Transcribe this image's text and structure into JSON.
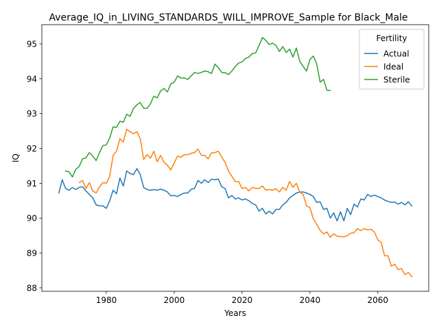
{
  "chart_data": {
    "type": "line",
    "title": "Average_IQ_in_LIVING_STANDARDS_WILL_IMPROVE_Sample for Black_Male",
    "xlabel": "Years",
    "ylabel": "IQ",
    "xlim": [
      1961,
      2075
    ],
    "ylim": [
      87.9,
      95.55
    ],
    "xticks": [
      1980,
      2000,
      2020,
      2040,
      2060
    ],
    "yticks": [
      88,
      89,
      90,
      91,
      92,
      93,
      94,
      95
    ],
    "grid": false,
    "legend": {
      "title": "Fertility",
      "placement": "top-right"
    },
    "series": [
      {
        "name": "Actual",
        "color": "#1f77b4",
        "points": [
          [
            1966,
            90.72
          ],
          [
            1967,
            91.1
          ],
          [
            1968,
            90.85
          ],
          [
            1969,
            90.8
          ],
          [
            1970,
            90.88
          ],
          [
            1971,
            90.82
          ],
          [
            1972,
            90.88
          ],
          [
            1973,
            90.9
          ],
          [
            1974,
            90.78
          ],
          [
            1975,
            90.68
          ],
          [
            1976,
            90.58
          ],
          [
            1977,
            90.38
          ],
          [
            1978,
            90.35
          ],
          [
            1979,
            90.35
          ],
          [
            1980,
            90.28
          ],
          [
            1981,
            90.5
          ],
          [
            1982,
            90.8
          ],
          [
            1983,
            90.7
          ],
          [
            1984,
            91.15
          ],
          [
            1985,
            90.92
          ],
          [
            1986,
            91.35
          ],
          [
            1987,
            91.28
          ],
          [
            1988,
            91.25
          ],
          [
            1989,
            91.42
          ],
          [
            1990,
            91.25
          ],
          [
            1991,
            90.88
          ],
          [
            1992,
            90.82
          ],
          [
            1993,
            90.8
          ],
          [
            1994,
            90.82
          ],
          [
            1995,
            90.8
          ],
          [
            1996,
            90.83
          ],
          [
            1997,
            90.8
          ],
          [
            1998,
            90.75
          ],
          [
            1999,
            90.64
          ],
          [
            2000,
            90.65
          ],
          [
            2001,
            90.62
          ],
          [
            2002,
            90.68
          ],
          [
            2003,
            90.72
          ],
          [
            2004,
            90.72
          ],
          [
            2005,
            90.83
          ],
          [
            2006,
            90.85
          ],
          [
            2007,
            91.08
          ],
          [
            2008,
            91.0
          ],
          [
            2009,
            91.1
          ],
          [
            2010,
            91.02
          ],
          [
            2011,
            91.12
          ],
          [
            2012,
            91.1
          ],
          [
            2013,
            91.12
          ],
          [
            2014,
            90.9
          ],
          [
            2015,
            90.85
          ],
          [
            2016,
            90.58
          ],
          [
            2017,
            90.65
          ],
          [
            2018,
            90.55
          ],
          [
            2019,
            90.58
          ],
          [
            2020,
            90.52
          ],
          [
            2021,
            90.55
          ],
          [
            2022,
            90.5
          ],
          [
            2023,
            90.42
          ],
          [
            2024,
            90.38
          ],
          [
            2025,
            90.2
          ],
          [
            2026,
            90.28
          ],
          [
            2027,
            90.12
          ],
          [
            2028,
            90.2
          ],
          [
            2029,
            90.12
          ],
          [
            2030,
            90.25
          ],
          [
            2031,
            90.25
          ],
          [
            2032,
            90.38
          ],
          [
            2033,
            90.45
          ],
          [
            2034,
            90.58
          ],
          [
            2035,
            90.65
          ],
          [
            2036,
            90.72
          ],
          [
            2037,
            90.75
          ],
          [
            2038,
            90.75
          ],
          [
            2039,
            90.72
          ],
          [
            2040,
            90.68
          ],
          [
            2041,
            90.62
          ],
          [
            2042,
            90.45
          ],
          [
            2043,
            90.47
          ],
          [
            2044,
            90.25
          ],
          [
            2045,
            90.28
          ],
          [
            2046,
            90.0
          ],
          [
            2047,
            90.15
          ],
          [
            2048,
            89.92
          ],
          [
            2049,
            90.18
          ],
          [
            2050,
            89.92
          ],
          [
            2051,
            90.28
          ],
          [
            2052,
            90.1
          ],
          [
            2053,
            90.4
          ],
          [
            2054,
            90.32
          ],
          [
            2055,
            90.55
          ],
          [
            2056,
            90.52
          ],
          [
            2057,
            90.68
          ],
          [
            2058,
            90.62
          ],
          [
            2059,
            90.66
          ],
          [
            2060,
            90.62
          ],
          [
            2061,
            90.58
          ],
          [
            2062,
            90.52
          ],
          [
            2063,
            90.48
          ],
          [
            2064,
            90.45
          ],
          [
            2065,
            90.46
          ],
          [
            2066,
            90.4
          ],
          [
            2067,
            90.45
          ],
          [
            2068,
            90.38
          ],
          [
            2069,
            90.47
          ],
          [
            2070,
            90.35
          ]
        ]
      },
      {
        "name": "Ideal",
        "color": "#ff7f0e",
        "points": [
          [
            1972,
            91.02
          ],
          [
            1973,
            91.08
          ],
          [
            1974,
            90.85
          ],
          [
            1975,
            91.02
          ],
          [
            1976,
            90.78
          ],
          [
            1977,
            90.72
          ],
          [
            1978,
            90.9
          ],
          [
            1979,
            91.02
          ],
          [
            1980,
            91.0
          ],
          [
            1981,
            91.2
          ],
          [
            1982,
            91.8
          ],
          [
            1983,
            91.92
          ],
          [
            1984,
            92.28
          ],
          [
            1985,
            92.18
          ],
          [
            1986,
            92.55
          ],
          [
            1987,
            92.48
          ],
          [
            1988,
            92.42
          ],
          [
            1989,
            92.48
          ],
          [
            1990,
            92.28
          ],
          [
            1991,
            91.68
          ],
          [
            1992,
            91.82
          ],
          [
            1993,
            91.72
          ],
          [
            1994,
            91.92
          ],
          [
            1995,
            91.62
          ],
          [
            1996,
            91.8
          ],
          [
            1997,
            91.6
          ],
          [
            1998,
            91.52
          ],
          [
            1999,
            91.38
          ],
          [
            2000,
            91.58
          ],
          [
            2001,
            91.78
          ],
          [
            2002,
            91.75
          ],
          [
            2003,
            91.82
          ],
          [
            2004,
            91.82
          ],
          [
            2005,
            91.86
          ],
          [
            2006,
            91.88
          ],
          [
            2007,
            91.98
          ],
          [
            2008,
            91.8
          ],
          [
            2009,
            91.8
          ],
          [
            2010,
            91.7
          ],
          [
            2011,
            91.87
          ],
          [
            2012,
            91.88
          ],
          [
            2013,
            91.92
          ],
          [
            2014,
            91.75
          ],
          [
            2015,
            91.6
          ],
          [
            2016,
            91.35
          ],
          [
            2017,
            91.2
          ],
          [
            2018,
            91.05
          ],
          [
            2019,
            91.05
          ],
          [
            2020,
            90.85
          ],
          [
            2021,
            90.88
          ],
          [
            2022,
            90.78
          ],
          [
            2023,
            90.88
          ],
          [
            2024,
            90.85
          ],
          [
            2025,
            90.85
          ],
          [
            2026,
            90.92
          ],
          [
            2027,
            90.8
          ],
          [
            2028,
            90.82
          ],
          [
            2029,
            90.8
          ],
          [
            2030,
            90.84
          ],
          [
            2031,
            90.75
          ],
          [
            2032,
            90.88
          ],
          [
            2033,
            90.8
          ],
          [
            2034,
            91.05
          ],
          [
            2035,
            90.88
          ],
          [
            2036,
            91.0
          ],
          [
            2037,
            90.75
          ],
          [
            2038,
            90.68
          ],
          [
            2039,
            90.35
          ],
          [
            2040,
            90.3
          ],
          [
            2041,
            89.98
          ],
          [
            2042,
            89.82
          ],
          [
            2043,
            89.65
          ],
          [
            2044,
            89.55
          ],
          [
            2045,
            89.6
          ],
          [
            2046,
            89.45
          ],
          [
            2047,
            89.55
          ],
          [
            2048,
            89.48
          ],
          [
            2049,
            89.47
          ],
          [
            2050,
            89.46
          ],
          [
            2051,
            89.5
          ],
          [
            2052,
            89.57
          ],
          [
            2053,
            89.58
          ],
          [
            2054,
            89.7
          ],
          [
            2055,
            89.64
          ],
          [
            2056,
            89.7
          ],
          [
            2057,
            89.66
          ],
          [
            2058,
            89.68
          ],
          [
            2059,
            89.6
          ],
          [
            2060,
            89.38
          ],
          [
            2061,
            89.3
          ],
          [
            2062,
            88.92
          ],
          [
            2063,
            88.92
          ],
          [
            2064,
            88.62
          ],
          [
            2065,
            88.68
          ],
          [
            2066,
            88.52
          ],
          [
            2067,
            88.55
          ],
          [
            2068,
            88.38
          ],
          [
            2069,
            88.44
          ],
          [
            2070,
            88.32
          ]
        ]
      },
      {
        "name": "Sterile",
        "color": "#2ca02c",
        "points": [
          [
            1968,
            91.35
          ],
          [
            1969,
            91.33
          ],
          [
            1970,
            91.18
          ],
          [
            1971,
            91.4
          ],
          [
            1972,
            91.48
          ],
          [
            1973,
            91.7
          ],
          [
            1974,
            91.73
          ],
          [
            1975,
            91.88
          ],
          [
            1976,
            91.78
          ],
          [
            1977,
            91.65
          ],
          [
            1978,
            91.88
          ],
          [
            1979,
            92.08
          ],
          [
            1980,
            92.1
          ],
          [
            1981,
            92.3
          ],
          [
            1982,
            92.62
          ],
          [
            1983,
            92.6
          ],
          [
            1984,
            92.78
          ],
          [
            1985,
            92.75
          ],
          [
            1986,
            92.98
          ],
          [
            1987,
            92.92
          ],
          [
            1988,
            93.15
          ],
          [
            1989,
            93.25
          ],
          [
            1990,
            93.32
          ],
          [
            1991,
            93.15
          ],
          [
            1992,
            93.15
          ],
          [
            1993,
            93.28
          ],
          [
            1994,
            93.5
          ],
          [
            1995,
            93.45
          ],
          [
            1996,
            93.65
          ],
          [
            1997,
            93.72
          ],
          [
            1998,
            93.62
          ],
          [
            1999,
            93.85
          ],
          [
            2000,
            93.9
          ],
          [
            2001,
            94.08
          ],
          [
            2002,
            94.02
          ],
          [
            2003,
            94.02
          ],
          [
            2004,
            93.98
          ],
          [
            2005,
            94.08
          ],
          [
            2006,
            94.18
          ],
          [
            2007,
            94.15
          ],
          [
            2008,
            94.18
          ],
          [
            2009,
            94.22
          ],
          [
            2010,
            94.2
          ],
          [
            2011,
            94.15
          ],
          [
            2012,
            94.42
          ],
          [
            2013,
            94.32
          ],
          [
            2014,
            94.18
          ],
          [
            2015,
            94.17
          ],
          [
            2016,
            94.12
          ],
          [
            2017,
            94.22
          ],
          [
            2018,
            94.35
          ],
          [
            2019,
            94.45
          ],
          [
            2020,
            94.48
          ],
          [
            2021,
            94.58
          ],
          [
            2022,
            94.62
          ],
          [
            2023,
            94.72
          ],
          [
            2024,
            94.74
          ],
          [
            2025,
            94.95
          ],
          [
            2026,
            95.18
          ],
          [
            2027,
            95.1
          ],
          [
            2028,
            94.98
          ],
          [
            2029,
            95.02
          ],
          [
            2030,
            94.95
          ],
          [
            2031,
            94.78
          ],
          [
            2032,
            94.92
          ],
          [
            2033,
            94.75
          ],
          [
            2034,
            94.85
          ],
          [
            2035,
            94.62
          ],
          [
            2036,
            94.88
          ],
          [
            2037,
            94.5
          ],
          [
            2038,
            94.35
          ],
          [
            2039,
            94.22
          ],
          [
            2040,
            94.55
          ],
          [
            2041,
            94.65
          ],
          [
            2042,
            94.42
          ],
          [
            2043,
            93.9
          ],
          [
            2044,
            93.98
          ],
          [
            2045,
            93.67
          ],
          [
            2046,
            93.66
          ]
        ]
      }
    ]
  }
}
